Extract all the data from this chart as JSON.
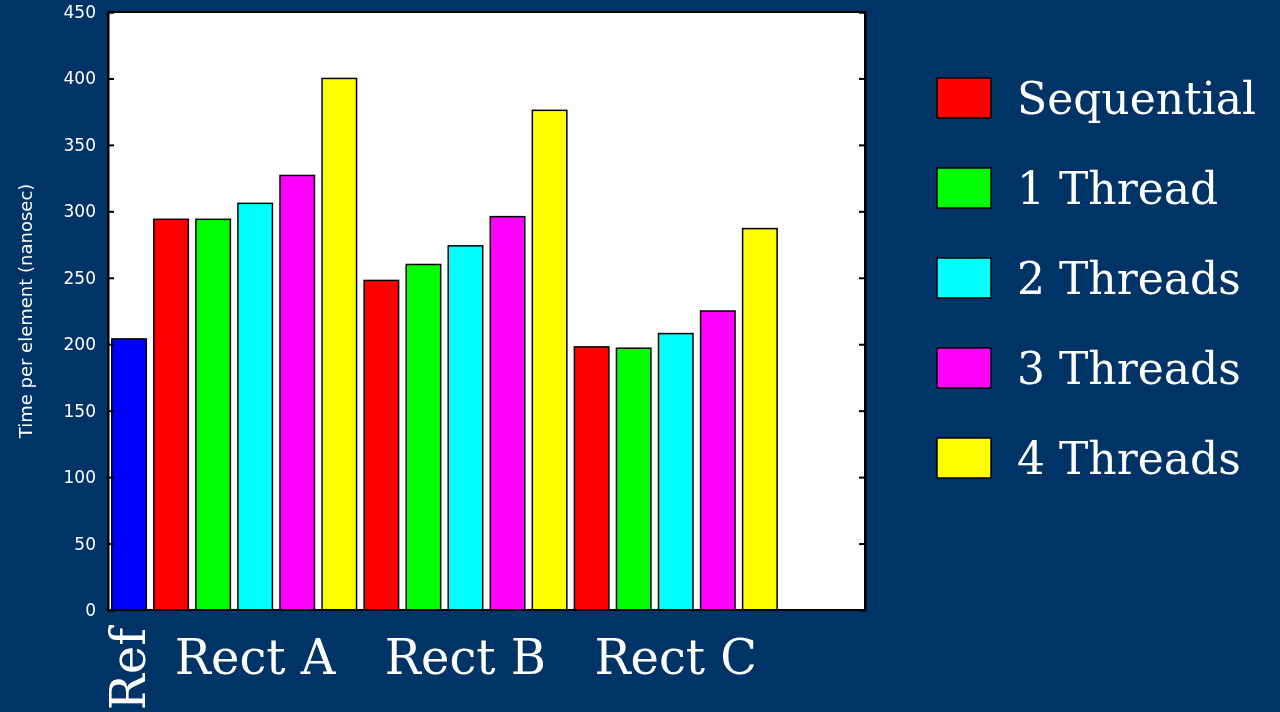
{
  "chart_data": {
    "type": "bar",
    "ylabel": "Time per element (nanosec)",
    "categories": [
      "Ref",
      "Rect A",
      "Rect B",
      "Rect C"
    ],
    "series": [
      {
        "color": "#0000ff",
        "values": [
          204,
          null,
          null,
          null
        ]
      },
      {
        "name": "Sequential",
        "color": "#ff0000",
        "values": [
          null,
          294,
          248,
          198
        ]
      },
      {
        "name": "1 Thread",
        "color": "#00ff00",
        "values": [
          null,
          294,
          260,
          197
        ]
      },
      {
        "name": "2 Threads",
        "color": "#00ffff",
        "values": [
          null,
          306,
          274,
          208
        ]
      },
      {
        "name": "3 Threads",
        "color": "#ff00ff",
        "values": [
          null,
          327,
          296,
          225
        ]
      },
      {
        "name": "4 Threads",
        "color": "#ffff00",
        "values": [
          null,
          400,
          376,
          287
        ]
      }
    ],
    "ylim": [
      0,
      450
    ],
    "yticks": [
      0,
      50,
      100,
      150,
      200,
      250,
      300,
      350,
      400,
      450
    ],
    "grid": false,
    "legend": "right"
  }
}
